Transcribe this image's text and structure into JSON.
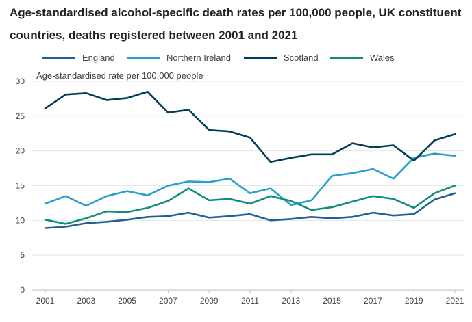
{
  "title": "Age-standardised alcohol-specific death rates per 100,000 people, UK constituent countries, deaths registered between 2001 and 2021",
  "chart_data": {
    "type": "line",
    "title": "Age-standardised alcohol-specific death rates per 100,000 people, UK constituent countries, deaths registered between 2001 and 2021",
    "xlabel": "",
    "ylabel": "Age-standardised rate per 100,000 people",
    "x": [
      2001,
      2002,
      2003,
      2004,
      2005,
      2006,
      2007,
      2008,
      2009,
      2010,
      2011,
      2012,
      2013,
      2014,
      2015,
      2016,
      2017,
      2018,
      2019,
      2020,
      2021
    ],
    "x_ticks": [
      "2001",
      "2003",
      "2005",
      "2007",
      "2009",
      "2011",
      "2013",
      "2015",
      "2017",
      "2019",
      "2021"
    ],
    "ylim": [
      0,
      30
    ],
    "y_ticks": [
      "0",
      "5",
      "10",
      "15",
      "20",
      "25",
      "30"
    ],
    "grid": "horizontal",
    "legend_position": "top-left",
    "series": [
      {
        "name": "England",
        "color": "#206095",
        "values": [
          8.9,
          9.1,
          9.6,
          9.8,
          10.1,
          10.5,
          10.6,
          11.1,
          10.4,
          10.6,
          10.9,
          10.0,
          10.2,
          10.5,
          10.3,
          10.5,
          11.1,
          10.7,
          10.9,
          13.0,
          13.9
        ]
      },
      {
        "name": "Northern Ireland",
        "color": "#27a0cc",
        "values": [
          12.4,
          13.5,
          12.1,
          13.5,
          14.2,
          13.6,
          15.0,
          15.6,
          15.5,
          16.0,
          13.9,
          14.6,
          12.2,
          12.9,
          16.4,
          16.8,
          17.4,
          16.0,
          19.0,
          19.6,
          19.3
        ]
      },
      {
        "name": "Scotland",
        "color": "#003c57",
        "values": [
          26.1,
          28.1,
          28.3,
          27.3,
          27.6,
          28.5,
          25.5,
          25.9,
          23.0,
          22.8,
          21.9,
          18.4,
          19.0,
          19.5,
          19.5,
          21.1,
          20.5,
          20.8,
          18.6,
          21.5,
          22.4
        ]
      },
      {
        "name": "Wales",
        "color": "#118c7b",
        "values": [
          10.1,
          9.5,
          10.3,
          11.3,
          11.2,
          11.8,
          12.8,
          14.6,
          12.9,
          13.1,
          12.4,
          13.5,
          12.8,
          11.5,
          11.9,
          12.7,
          13.5,
          13.1,
          11.8,
          13.9,
          15.0
        ]
      }
    ]
  }
}
